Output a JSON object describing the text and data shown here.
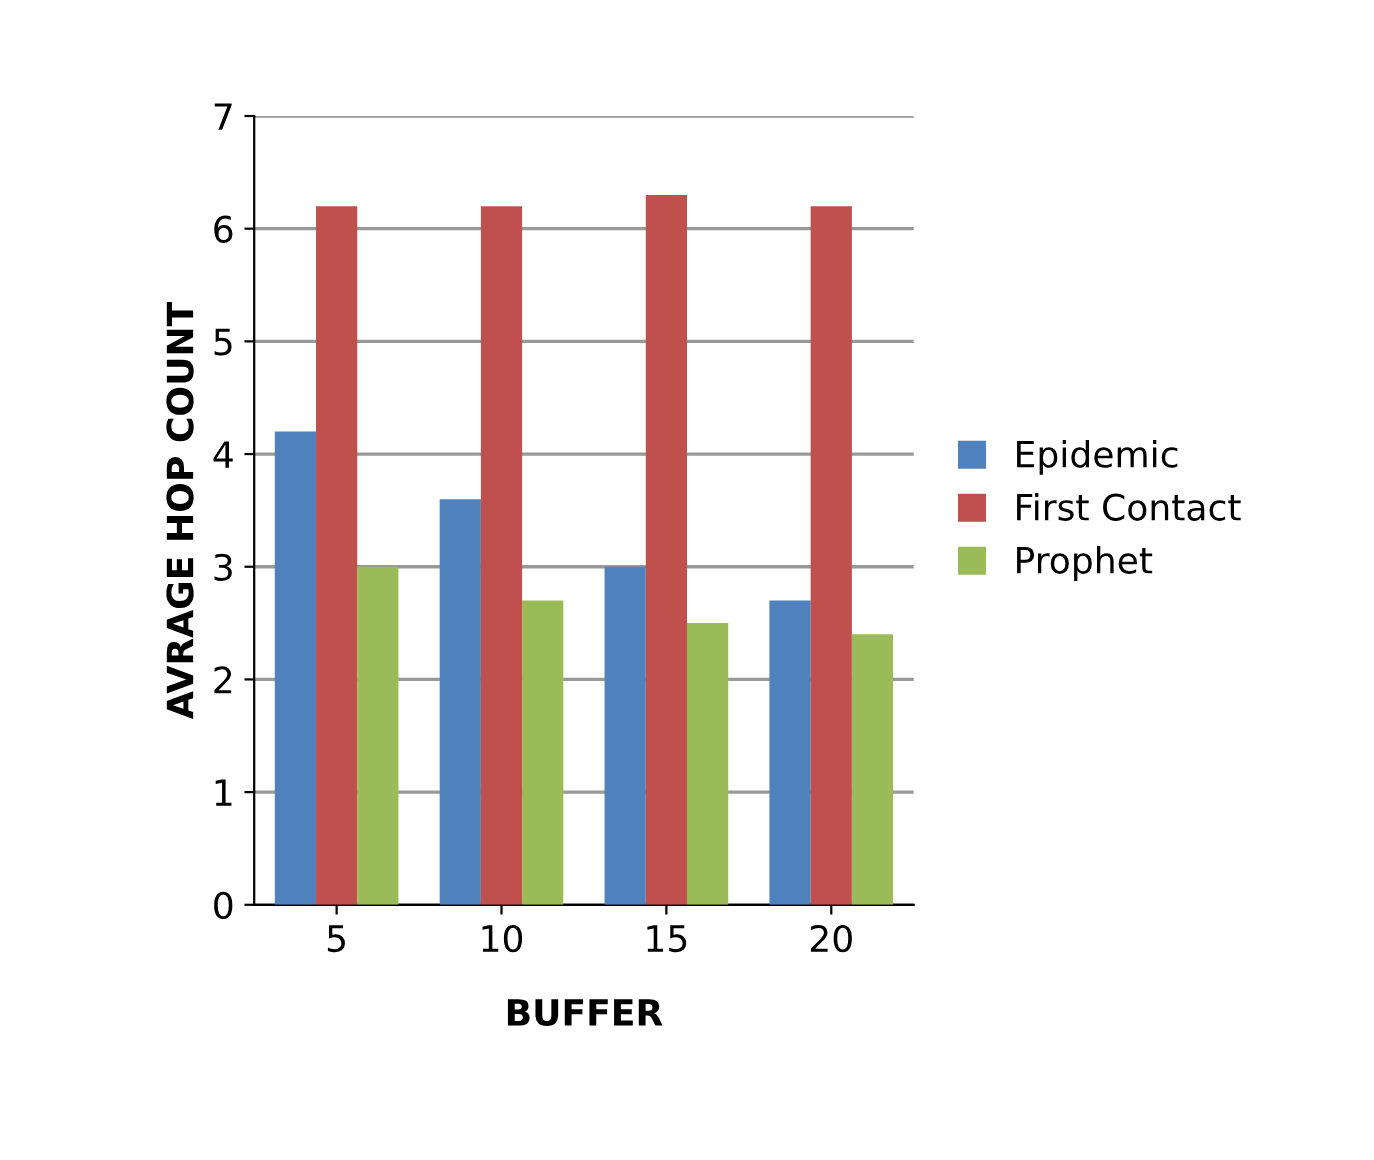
{
  "chart_data": {
    "type": "bar",
    "xlabel": "BUFFER",
    "ylabel": "AVRAGE HOP COUNT",
    "categories": [
      "5",
      "10",
      "15",
      "20"
    ],
    "series": [
      {
        "name": "Epidemic",
        "color": "#4f81bd",
        "values": [
          4.2,
          3.6,
          3.0,
          2.7
        ]
      },
      {
        "name": "First Contact",
        "color": "#c0504d",
        "values": [
          6.2,
          6.2,
          6.3,
          6.2
        ]
      },
      {
        "name": "Prophet",
        "color": "#9bbb59",
        "values": [
          3.0,
          2.7,
          2.5,
          2.4
        ]
      }
    ],
    "ylim": [
      0,
      7
    ],
    "yticks": [
      0,
      1,
      2,
      3,
      4,
      5,
      6,
      7
    ],
    "grid": "y",
    "legend": "right"
  }
}
